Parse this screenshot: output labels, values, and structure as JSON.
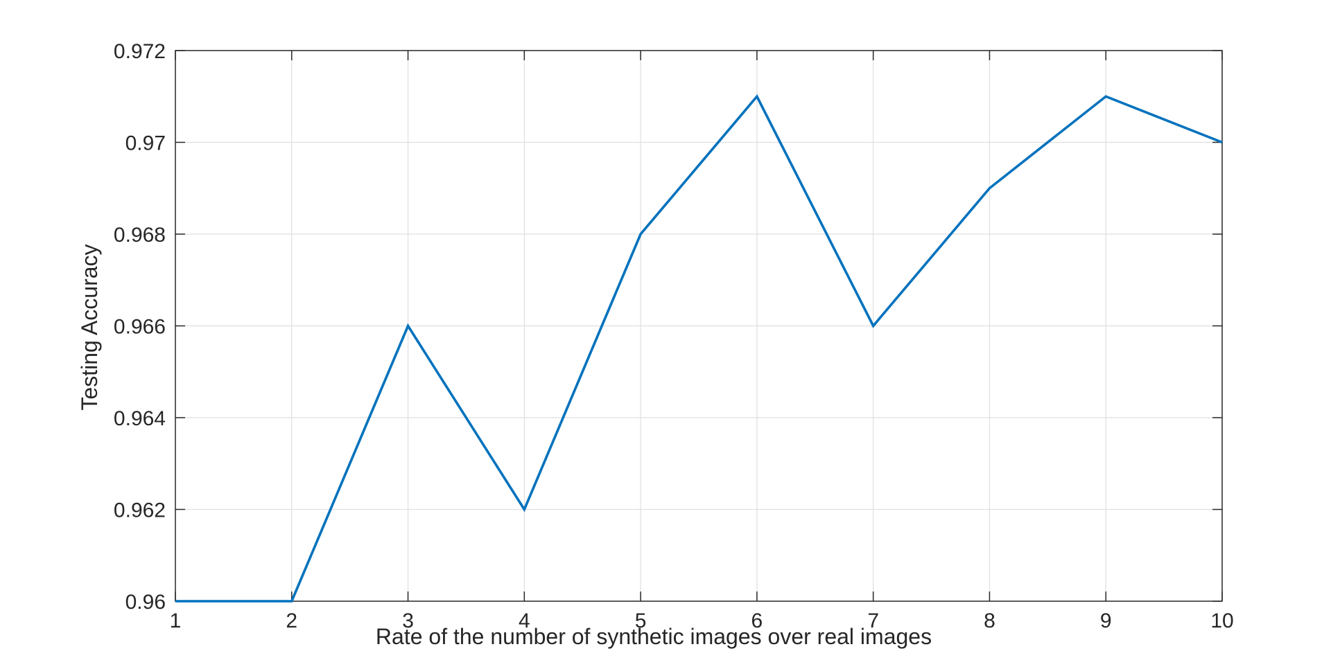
{
  "chart_data": {
    "type": "line",
    "title": "",
    "xlabel": "Rate of the number of synthetic images over real images",
    "ylabel": "Testing Accuracy",
    "xlim": [
      1,
      10
    ],
    "ylim": [
      0.96,
      0.972
    ],
    "x_ticks": [
      1,
      2,
      3,
      4,
      5,
      6,
      7,
      8,
      9,
      10
    ],
    "x_tick_labels": [
      "1",
      "2",
      "3",
      "4",
      "5",
      "6",
      "7",
      "8",
      "9",
      "10"
    ],
    "y_ticks": [
      0.96,
      0.962,
      0.964,
      0.966,
      0.968,
      0.97,
      0.972
    ],
    "y_tick_labels": [
      "0.96",
      "0.962",
      "0.964",
      "0.966",
      "0.968",
      "0.97",
      "0.972"
    ],
    "grid": true,
    "legend": "none",
    "series": [
      {
        "x": [
          1,
          2,
          3,
          4,
          5,
          6,
          7,
          8,
          9,
          10
        ],
        "values": [
          0.96,
          0.96,
          0.966,
          0.962,
          0.968,
          0.971,
          0.966,
          0.969,
          0.971,
          0.97
        ],
        "color": "#0072BD"
      }
    ],
    "colors": {
      "axis": "#262626",
      "grid": "#dfdfdf",
      "line": "#0072BD"
    }
  }
}
